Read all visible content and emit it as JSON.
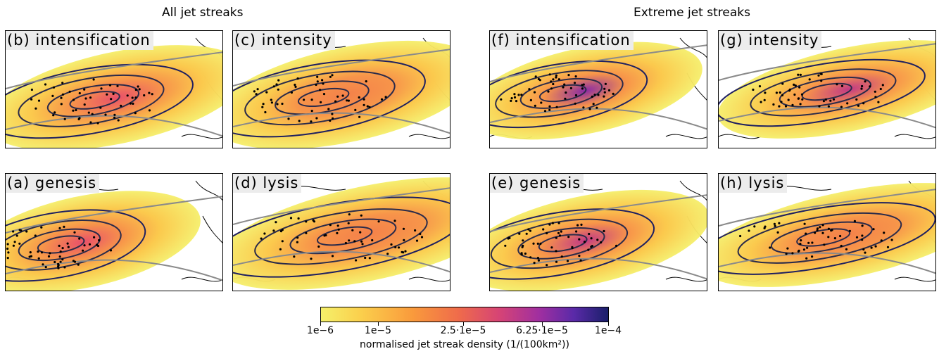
{
  "titles": {
    "all": "All jet streaks",
    "extreme": "Extreme jet streaks"
  },
  "panels": [
    {
      "id": "b",
      "label": "(b) intensification",
      "group": "all"
    },
    {
      "id": "c",
      "label": "(c) intensity",
      "group": "all"
    },
    {
      "id": "f",
      "label": "(f) intensification",
      "group": "extreme"
    },
    {
      "id": "g",
      "label": "(g) intensity",
      "group": "extreme"
    },
    {
      "id": "a",
      "label": "(a) genesis",
      "group": "all"
    },
    {
      "id": "d",
      "label": "(d) lysis",
      "group": "all"
    },
    {
      "id": "e",
      "label": "(e) genesis",
      "group": "extreme"
    },
    {
      "id": "h",
      "label": "(h) lysis",
      "group": "extreme"
    }
  ],
  "colorbar": {
    "title": "normalised jet streak density (1/(100km²))",
    "ticks": [
      "1e−6",
      "1e−5",
      "2.5·1e−5",
      "6.25·1e−5",
      "1e−4"
    ],
    "colors": [
      "#f5f06a",
      "#fbcf4c",
      "#f99a3c",
      "#ef6b4b",
      "#d64475",
      "#a02fa0",
      "#5a2aa8",
      "#1a1f6a"
    ]
  },
  "chart_data": {
    "type": "heatmap",
    "scale": "log",
    "range": [
      1e-06,
      0.0001
    ],
    "colorbar_ticks": [
      1e-06,
      1e-05,
      2.5e-05,
      6.25e-05,
      0.0001
    ],
    "colorbar_label": "normalised jet streak density (1/(100km²))"
  }
}
